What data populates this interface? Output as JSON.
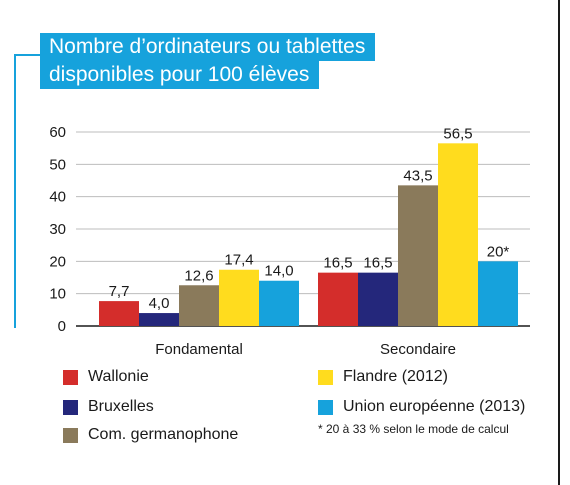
{
  "title": {
    "line1": "Nombre d’ordinateurs ou tablettes",
    "line2": "disponibles pour 100 élèves"
  },
  "chart_data": {
    "type": "bar",
    "categories": [
      "Fondamental",
      "Secondaire"
    ],
    "ylim": [
      0,
      60
    ],
    "yticks": [
      "0",
      "10",
      "20",
      "30",
      "40",
      "50",
      "60"
    ],
    "grid": true,
    "legend_placement": "bottom",
    "series": [
      {
        "name": "Wallonie",
        "color": "#d42d2b",
        "values": [
          7.7,
          16.5
        ],
        "labels": [
          "7,7",
          "16,5"
        ]
      },
      {
        "name": "Bruxelles",
        "color": "#24277b",
        "values": [
          4.0,
          16.5
        ],
        "labels": [
          "4,0",
          "16,5"
        ]
      },
      {
        "name": "Com. germanophone",
        "color": "#8a7a5b",
        "values": [
          12.6,
          43.5
        ],
        "labels": [
          "12,6",
          "43,5"
        ]
      },
      {
        "name": "Flandre (2012)",
        "color": "#ffdc1e",
        "values": [
          17.4,
          56.5
        ],
        "labels": [
          "17,4",
          "56,5"
        ]
      },
      {
        "name": "Union européenne (2013)",
        "color": "#16a2dc",
        "values": [
          14.0,
          20
        ],
        "labels": [
          "14,0",
          "20*"
        ]
      }
    ]
  },
  "footnote": "* 20 à 33 % selon le mode de calcul"
}
